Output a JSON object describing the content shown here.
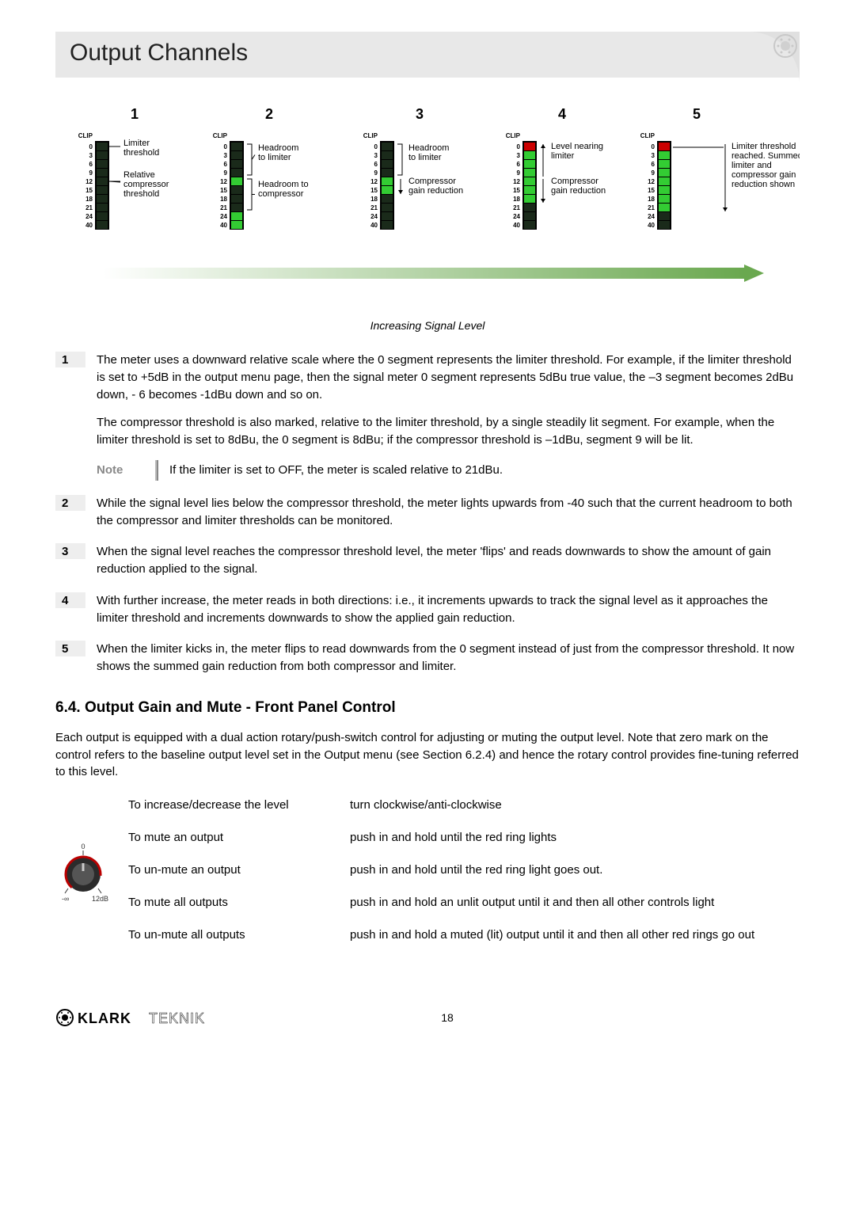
{
  "title": "Output Channels",
  "diagram": {
    "caption": "Increasing Signal Level",
    "column_nums": [
      "1",
      "2",
      "3",
      "4",
      "5"
    ],
    "scale_top": "CLIP",
    "scale_vals": [
      "0",
      "3",
      "6",
      "9",
      "12",
      "15",
      "18",
      "21",
      "24",
      "40"
    ],
    "meters": [
      {
        "lit": [
          0,
          0,
          0,
          0,
          0,
          0,
          0,
          0,
          0,
          0
        ],
        "labels": [
          "Limiter threshold",
          "Relative compressor threshold"
        ],
        "arrow_idxs": [
          0,
          4
        ],
        "arrow_type": "line"
      },
      {
        "lit": [
          0,
          0,
          0,
          0,
          1,
          0,
          0,
          0,
          1,
          1
        ],
        "labels": [
          "Headroom to limiter",
          "Headroom to compressor"
        ],
        "arrow_type": "bracket",
        "brackets": [
          [
            0,
            3
          ],
          [
            4,
            7
          ]
        ]
      },
      {
        "lit": [
          0,
          0,
          0,
          0,
          1,
          1,
          0,
          0,
          0,
          0
        ],
        "labels": [
          "Headroom to limiter",
          "Compressor gain reduction"
        ],
        "arrow_type": "bracketdown",
        "brackets": [
          [
            0,
            3
          ],
          [
            4,
            5
          ]
        ]
      },
      {
        "lit": [
          1,
          1,
          1,
          1,
          1,
          1,
          1,
          0,
          0,
          0
        ],
        "labels": [
          "Level nearing limiter",
          "Compressor gain reduction"
        ],
        "arrow_type": "updown",
        "arrow_ranges": [
          [
            3,
            0
          ],
          [
            4,
            6
          ]
        ]
      },
      {
        "lit": [
          1,
          1,
          1,
          1,
          1,
          1,
          1,
          1,
          0,
          0
        ],
        "side_label": "Limiter threshold reached. Summed limiter and compressor gain reduction shown",
        "arrow_type": "downside",
        "arrow_ranges": [
          [
            0,
            7
          ]
        ]
      }
    ],
    "colors": {
      "meter_bg": "#000000",
      "meter_off": "#1a2a1a",
      "meter_red": "#cc0000",
      "meter_green": "#33cc33",
      "scale_text": "#000000",
      "arrow_green": "#6aa84f"
    }
  },
  "items": [
    {
      "n": "1",
      "paras": [
        "The meter uses a downward relative scale where the 0 segment represents the limiter threshold. For example, if the limiter threshold is set to +5dB in the output menu page, then the signal meter 0 segment represents 5dBu true value, the –3 segment becomes 2dBu down, - 6 becomes -1dBu down and so on.",
        "The compressor threshold is also marked, relative to the limiter threshold, by a single steadily lit segment.  For example, when the limiter threshold is set to 8dBu, the 0 segment is 8dBu; if the compressor threshold is –1dBu, segment 9 will be lit."
      ],
      "note": "If the limiter is set to OFF, the meter is scaled relative to 21dBu."
    },
    {
      "n": "2",
      "paras": [
        "While the signal level lies below the compressor threshold, the meter lights upwards from -40 such that the current headroom to both the compressor and limiter thresholds can be monitored."
      ]
    },
    {
      "n": "3",
      "paras": [
        "When the signal level reaches the compressor threshold level, the meter 'flips' and reads downwards to show the amount of gain reduction applied to the signal."
      ]
    },
    {
      "n": "4",
      "paras": [
        "With further increase, the meter reads in both directions: i.e., it increments upwards to track the signal level as it approaches the limiter threshold and increments downwards to show the applied gain reduction."
      ]
    },
    {
      "n": "5",
      "paras": [
        "When the limiter kicks in, the meter flips to read downwards from the 0 segment instead of just from the compressor threshold.  It now shows the summed gain reduction from both compressor and limiter."
      ]
    }
  ],
  "note_label": "Note",
  "section_heading": "6.4.   Output Gain and Mute - Front Panel Control",
  "section_body": "Each output is equipped with a dual action rotary/push-switch control for adjusting or muting the output level.  Note that zero mark on the control refers to the baseline output level set in the Output menu (see Section 6.2.4) and hence the rotary control provides fine-tuning referred to this level.",
  "controls": [
    {
      "left": "To increase/decrease the level",
      "right": "turn clockwise/anti-clockwise"
    },
    {
      "left": "To mute an output",
      "right": "push in and hold until the red ring lights"
    },
    {
      "left": "To un-mute an output",
      "right": "push in and hold until the red ring light goes out."
    },
    {
      "left": "To mute all outputs",
      "right": "push in and hold an unlit output until it and then all other controls light"
    },
    {
      "left": "To un-mute all outputs",
      "right": "push in and hold a muted (lit) output until it and then all other red rings go out"
    }
  ],
  "knob": {
    "top_label": "0",
    "left_label": "-∞",
    "right_label": "12dB"
  },
  "footer_page": "18",
  "footer_logo": "KLARK TEKNIK"
}
